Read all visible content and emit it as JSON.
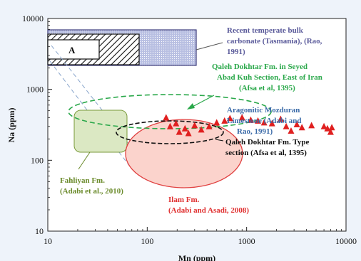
{
  "chart_data": {
    "type": "scatter",
    "xlabel": "Mn (ppm)",
    "ylabel": "Na (ppm)",
    "x_scale": "log",
    "y_scale": "log",
    "xlim": [
      10,
      10000
    ],
    "ylim": [
      10,
      10000
    ],
    "x_ticks": [
      "10",
      "100",
      "1000",
      "10000"
    ],
    "y_ticks": [
      "10",
      "100",
      "1000",
      "10000"
    ],
    "grid": false,
    "series": [
      {
        "marker": "triangle",
        "color": "#e02020",
        "points": [
          {
            "x": 155,
            "y": 400
          },
          {
            "x": 170,
            "y": 300
          },
          {
            "x": 195,
            "y": 330
          },
          {
            "x": 210,
            "y": 250
          },
          {
            "x": 240,
            "y": 280
          },
          {
            "x": 260,
            "y": 240
          },
          {
            "x": 300,
            "y": 310
          },
          {
            "x": 350,
            "y": 270
          },
          {
            "x": 420,
            "y": 300
          },
          {
            "x": 500,
            "y": 340
          },
          {
            "x": 600,
            "y": 360
          },
          {
            "x": 680,
            "y": 390
          },
          {
            "x": 900,
            "y": 400
          },
          {
            "x": 1100,
            "y": 370
          },
          {
            "x": 1300,
            "y": 360
          },
          {
            "x": 1500,
            "y": 340
          },
          {
            "x": 1800,
            "y": 330
          },
          {
            "x": 2200,
            "y": 380
          },
          {
            "x": 2500,
            "y": 300
          },
          {
            "x": 2800,
            "y": 260
          },
          {
            "x": 3200,
            "y": 320
          },
          {
            "x": 3600,
            "y": 290
          },
          {
            "x": 4500,
            "y": 310
          },
          {
            "x": 6000,
            "y": 300
          },
          {
            "x": 6500,
            "y": 280
          },
          {
            "x": 7200,
            "y": 290
          },
          {
            "x": 7000,
            "y": 250
          }
        ]
      }
    ],
    "fields": [
      {
        "label": "Recent temperate bulk carbonate (Tasmania), (Rao, 1991)",
        "color": "#5a5a9a"
      },
      {
        "label": "A",
        "color": "#111111"
      },
      {
        "label": "Qaleh Dokhtar Fm. in Seyed Abad Kuh Section, East of Iran (Afsa et al, 1395)",
        "color": "#2aa84a"
      },
      {
        "label": "Aragonitic Mozduran Limestone (Adabi and Rao, 1991)",
        "color": "#3a6aa8"
      },
      {
        "label": "Qaleh Dokhtar Fm. Type section (Afsa et al, 1395)",
        "color": "#111111"
      },
      {
        "label": "Fahliyan Fm. (Adabi et al., 2010)",
        "color": "#6a8a2a"
      },
      {
        "label": "Ilam Fm. (Adabi and Asadi, 2008)",
        "color": "#e03030"
      }
    ]
  },
  "annotations": {
    "tasmania_1": "Recent temperate bulk",
    "tasmania_2": "carbonate (Tasmania), (Rao,",
    "tasmania_3": "1991)",
    "box_a": "A",
    "seyed_1": "Qaleh Dokhtar Fm. in Seyed",
    "seyed_2": "Abad Kuh Section, East of Iran",
    "seyed_3": "(Afsa et al, 1395)",
    "mozduran_1": "Aragonitic Mozduran",
    "mozduran_2": "Limestone (Adabi and",
    "mozduran_3": "Rao, 1991)",
    "type_1": "Qaleh Dokhtar Fm. Type",
    "type_2": "section  (Afsa et al, 1395)",
    "fahliyan_1": "Fahliyan Fm.",
    "fahliyan_2": "(Adabi et al., 2010)",
    "ilam_1": "Ilam Fm.",
    "ilam_2": "(Adabi and Asadi, 2008)"
  }
}
